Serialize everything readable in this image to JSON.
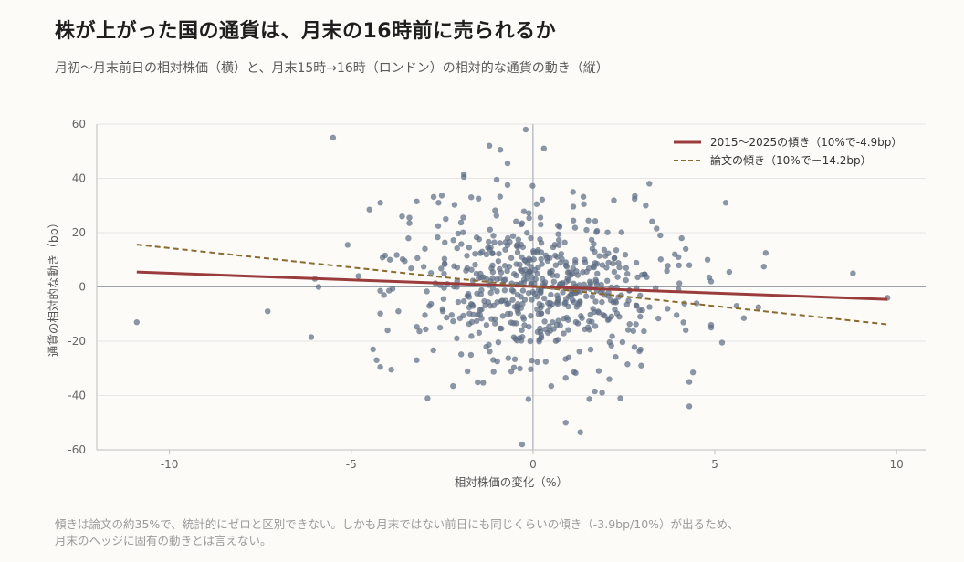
{
  "title": "株が上がった国の通貨は、月末の16時前に売られるか",
  "subtitle": "月初〜月末前日の相対株価（横）と、月末15時→16時（ロンドン）の相対的な通貨の動き（縦）",
  "footnote": [
    "傾きは論文の約35%で、統計的にゼロと区別できない。しかも月末ではない前日にも同じくらいの傾き（-3.9bp/10%）が出るため、",
    "月末のヘッジに固有の動きとは言えない。"
  ],
  "colors": {
    "background": "#fcfbf8",
    "points": "#5f6f86",
    "fit_line": "#9b3c3c",
    "paper_line": "#8a6a2e",
    "grid": "#e6e6e6",
    "zero_line": "#9aa0ad"
  },
  "chart_data": {
    "type": "scatter",
    "xlabel": "相対株価の変化（%）",
    "ylabel": "通貨の相対的な動き（bp）",
    "xlim": [
      -12,
      10.8
    ],
    "ylim": [
      -60,
      60
    ],
    "xticks": [
      -10,
      -5,
      0,
      5,
      10
    ],
    "yticks": [
      -60,
      -40,
      -20,
      0,
      20,
      40,
      60
    ],
    "grid": "horizontal",
    "legend_position": "top-right",
    "lines": [
      {
        "name": "2015〜2025の傾き（10%で-4.9bp）",
        "style": "solid",
        "color": "#9b3c3c",
        "x": [
          -10.9,
          9.75
        ],
        "y": [
          5.5,
          -4.6
        ]
      },
      {
        "name": "論文の傾き（10%で－14.2bp）",
        "style": "dashed",
        "color": "#8a6a2e",
        "x": [
          -10.9,
          9.75
        ],
        "y": [
          15.6,
          -13.8
        ]
      }
    ],
    "n_points_approx": 640,
    "x_sd_approx": 1.75,
    "y_sd_approx": 14,
    "points": [
      {
        "x": -10.9,
        "y": -13
      },
      {
        "x": -7.3,
        "y": -9
      },
      {
        "x": -6.1,
        "y": -18.5
      },
      {
        "x": -6.0,
        "y": 3
      },
      {
        "x": -5.9,
        "y": 0
      },
      {
        "x": -5.5,
        "y": 55
      },
      {
        "x": -5.1,
        "y": 15.5
      },
      {
        "x": -4.8,
        "y": 4
      },
      {
        "x": -4.5,
        "y": 28.5
      },
      {
        "x": -4.4,
        "y": -23
      },
      {
        "x": -4.3,
        "y": -27
      },
      {
        "x": -4.2,
        "y": -29.5
      },
      {
        "x": -4.2,
        "y": 31
      },
      {
        "x": -4.1,
        "y": -3
      },
      {
        "x": -4.0,
        "y": -16
      },
      {
        "x": -3.9,
        "y": -30.5
      },
      {
        "x": -3.6,
        "y": 26
      },
      {
        "x": -3.4,
        "y": 25.5
      },
      {
        "x": -3.4,
        "y": 23.5
      },
      {
        "x": -3.2,
        "y": 31.5
      },
      {
        "x": -3.2,
        "y": -27
      },
      {
        "x": -2.9,
        "y": -41
      },
      {
        "x": -2.6,
        "y": 31
      },
      {
        "x": -2.4,
        "y": 25
      },
      {
        "x": -2.2,
        "y": -36.5
      },
      {
        "x": -1.9,
        "y": 40.5
      },
      {
        "x": -1.9,
        "y": 41.5
      },
      {
        "x": -1.7,
        "y": 33
      },
      {
        "x": -1.5,
        "y": 32.5
      },
      {
        "x": -1.2,
        "y": 52
      },
      {
        "x": -1.0,
        "y": 39.5
      },
      {
        "x": -0.9,
        "y": 50.5
      },
      {
        "x": -0.7,
        "y": 45.5
      },
      {
        "x": -0.7,
        "y": 37.5
      },
      {
        "x": -0.3,
        "y": -58
      },
      {
        "x": -0.3,
        "y": 23.5
      },
      {
        "x": -0.2,
        "y": 58
      },
      {
        "x": 0.1,
        "y": 30.5
      },
      {
        "x": 0.3,
        "y": 51
      },
      {
        "x": 0.5,
        "y": -36.5
      },
      {
        "x": 0.9,
        "y": -33.5
      },
      {
        "x": 0.9,
        "y": -50
      },
      {
        "x": 1.1,
        "y": 35
      },
      {
        "x": 1.3,
        "y": -53.5
      },
      {
        "x": 1.4,
        "y": 30.5
      },
      {
        "x": 1.7,
        "y": -38.5
      },
      {
        "x": 1.9,
        "y": -39
      },
      {
        "x": 2.1,
        "y": -34
      },
      {
        "x": 2.4,
        "y": -41
      },
      {
        "x": 2.6,
        "y": -28.5
      },
      {
        "x": 2.8,
        "y": 33.5
      },
      {
        "x": 3.1,
        "y": 30
      },
      {
        "x": 3.2,
        "y": 38
      },
      {
        "x": 3.4,
        "y": 21.5
      },
      {
        "x": 3.5,
        "y": 19
      },
      {
        "x": 3.9,
        "y": 12
      },
      {
        "x": 4.0,
        "y": 11
      },
      {
        "x": 4.2,
        "y": 14
      },
      {
        "x": 4.3,
        "y": 8
      },
      {
        "x": 4.3,
        "y": -44
      },
      {
        "x": 4.4,
        "y": -31.5
      },
      {
        "x": 4.3,
        "y": -35
      },
      {
        "x": 4.5,
        "y": -6
      },
      {
        "x": 4.8,
        "y": 10
      },
      {
        "x": 4.9,
        "y": 2
      },
      {
        "x": 4.85,
        "y": 3.5
      },
      {
        "x": 4.9,
        "y": -14
      },
      {
        "x": 4.9,
        "y": -15
      },
      {
        "x": 5.2,
        "y": -20.5
      },
      {
        "x": 5.3,
        "y": 31
      },
      {
        "x": 5.4,
        "y": 5.5
      },
      {
        "x": 5.6,
        "y": -7
      },
      {
        "x": 5.8,
        "y": -11.5
      },
      {
        "x": 6.2,
        "y": -7.5
      },
      {
        "x": 6.4,
        "y": 12.5
      },
      {
        "x": 6.35,
        "y": 7.5
      },
      {
        "x": 8.8,
        "y": 5
      },
      {
        "x": 9.75,
        "y": -4
      }
    ]
  }
}
